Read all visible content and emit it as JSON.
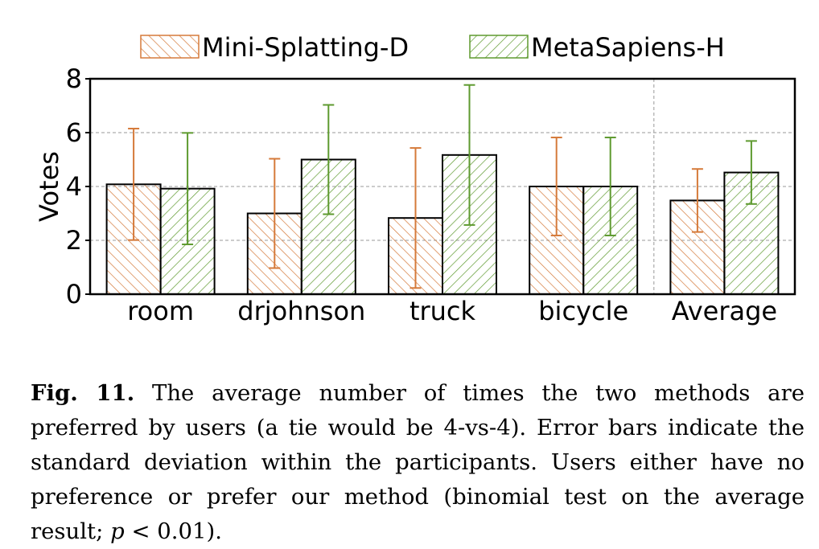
{
  "chart_data": {
    "type": "bar",
    "categories": [
      "room",
      "drjohnson",
      "truck",
      "bicycle",
      "Average"
    ],
    "ylabel": "Votes",
    "ylim": [
      0,
      8
    ],
    "yticks": [
      0,
      2,
      4,
      6,
      8
    ],
    "grid": true,
    "legend_position": "top",
    "series": [
      {
        "name": "Mini-Splatting-D",
        "values": [
          4.08,
          3.0,
          2.83,
          4.0,
          3.48
        ],
        "error": [
          2.07,
          2.03,
          2.6,
          1.82,
          1.17
        ],
        "color": "#d57a3a",
        "hatch": "backslash"
      },
      {
        "name": "MetaSapiens-H",
        "values": [
          3.92,
          5.0,
          5.17,
          4.0,
          4.52
        ],
        "error": [
          2.07,
          2.03,
          2.6,
          1.82,
          1.17
        ],
        "color": "#5e9a2f",
        "hatch": "slash"
      }
    ],
    "separator_before_category": "Average"
  },
  "caption": {
    "label": "Fig. 11.",
    "text_before_p": "The average number of times the two methods are preferred by users (a tie would be 4-vs-4). Error bars indicate the standard deviation within the participants. Users either have no preference or prefer our method (binomial test on the average result; ",
    "p_symbol": "p",
    "text_after_p": " < 0.01)."
  }
}
